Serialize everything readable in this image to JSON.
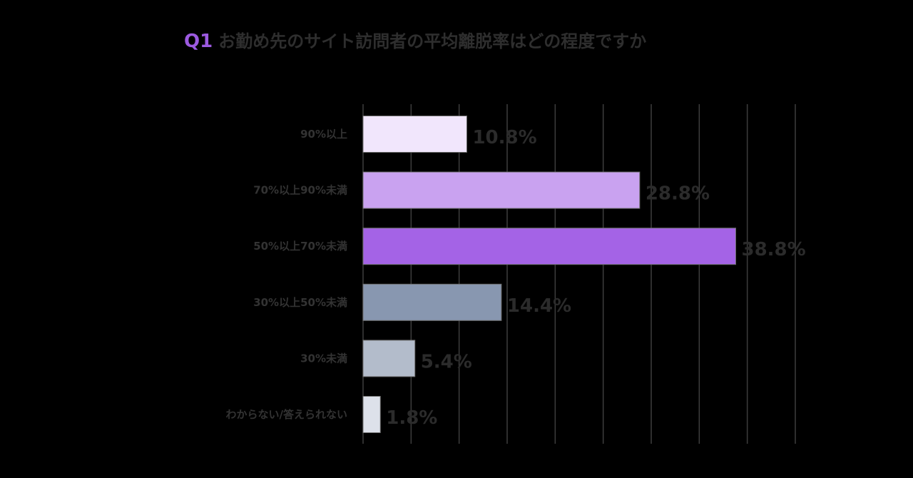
{
  "chart_data": {
    "type": "bar",
    "orientation": "horizontal",
    "title": {
      "number": "Q1",
      "text": "お勤め先のサイト訪問者の平均離脱率はどの程度ですか"
    },
    "categories": [
      "90%以上",
      "70%以上90%未満",
      "50%以上70%未満",
      "30%以上50%未満",
      "30%未満",
      "わからない/答えられない"
    ],
    "values": [
      10.8,
      28.8,
      38.8,
      14.4,
      5.4,
      1.8
    ],
    "value_labels": [
      "10.8%",
      "28.8%",
      "38.8%",
      "14.4%",
      "5.4%",
      "1.8%"
    ],
    "bar_colors": [
      "#f1e6fc",
      "#c9a2f0",
      "#a463e6",
      "#8897b0",
      "#b3bccb",
      "#dde1ea"
    ],
    "xlim": [
      0,
      45
    ],
    "grid": true,
    "grid_step": 5,
    "legend": "none",
    "xlabel": "",
    "ylabel": ""
  }
}
